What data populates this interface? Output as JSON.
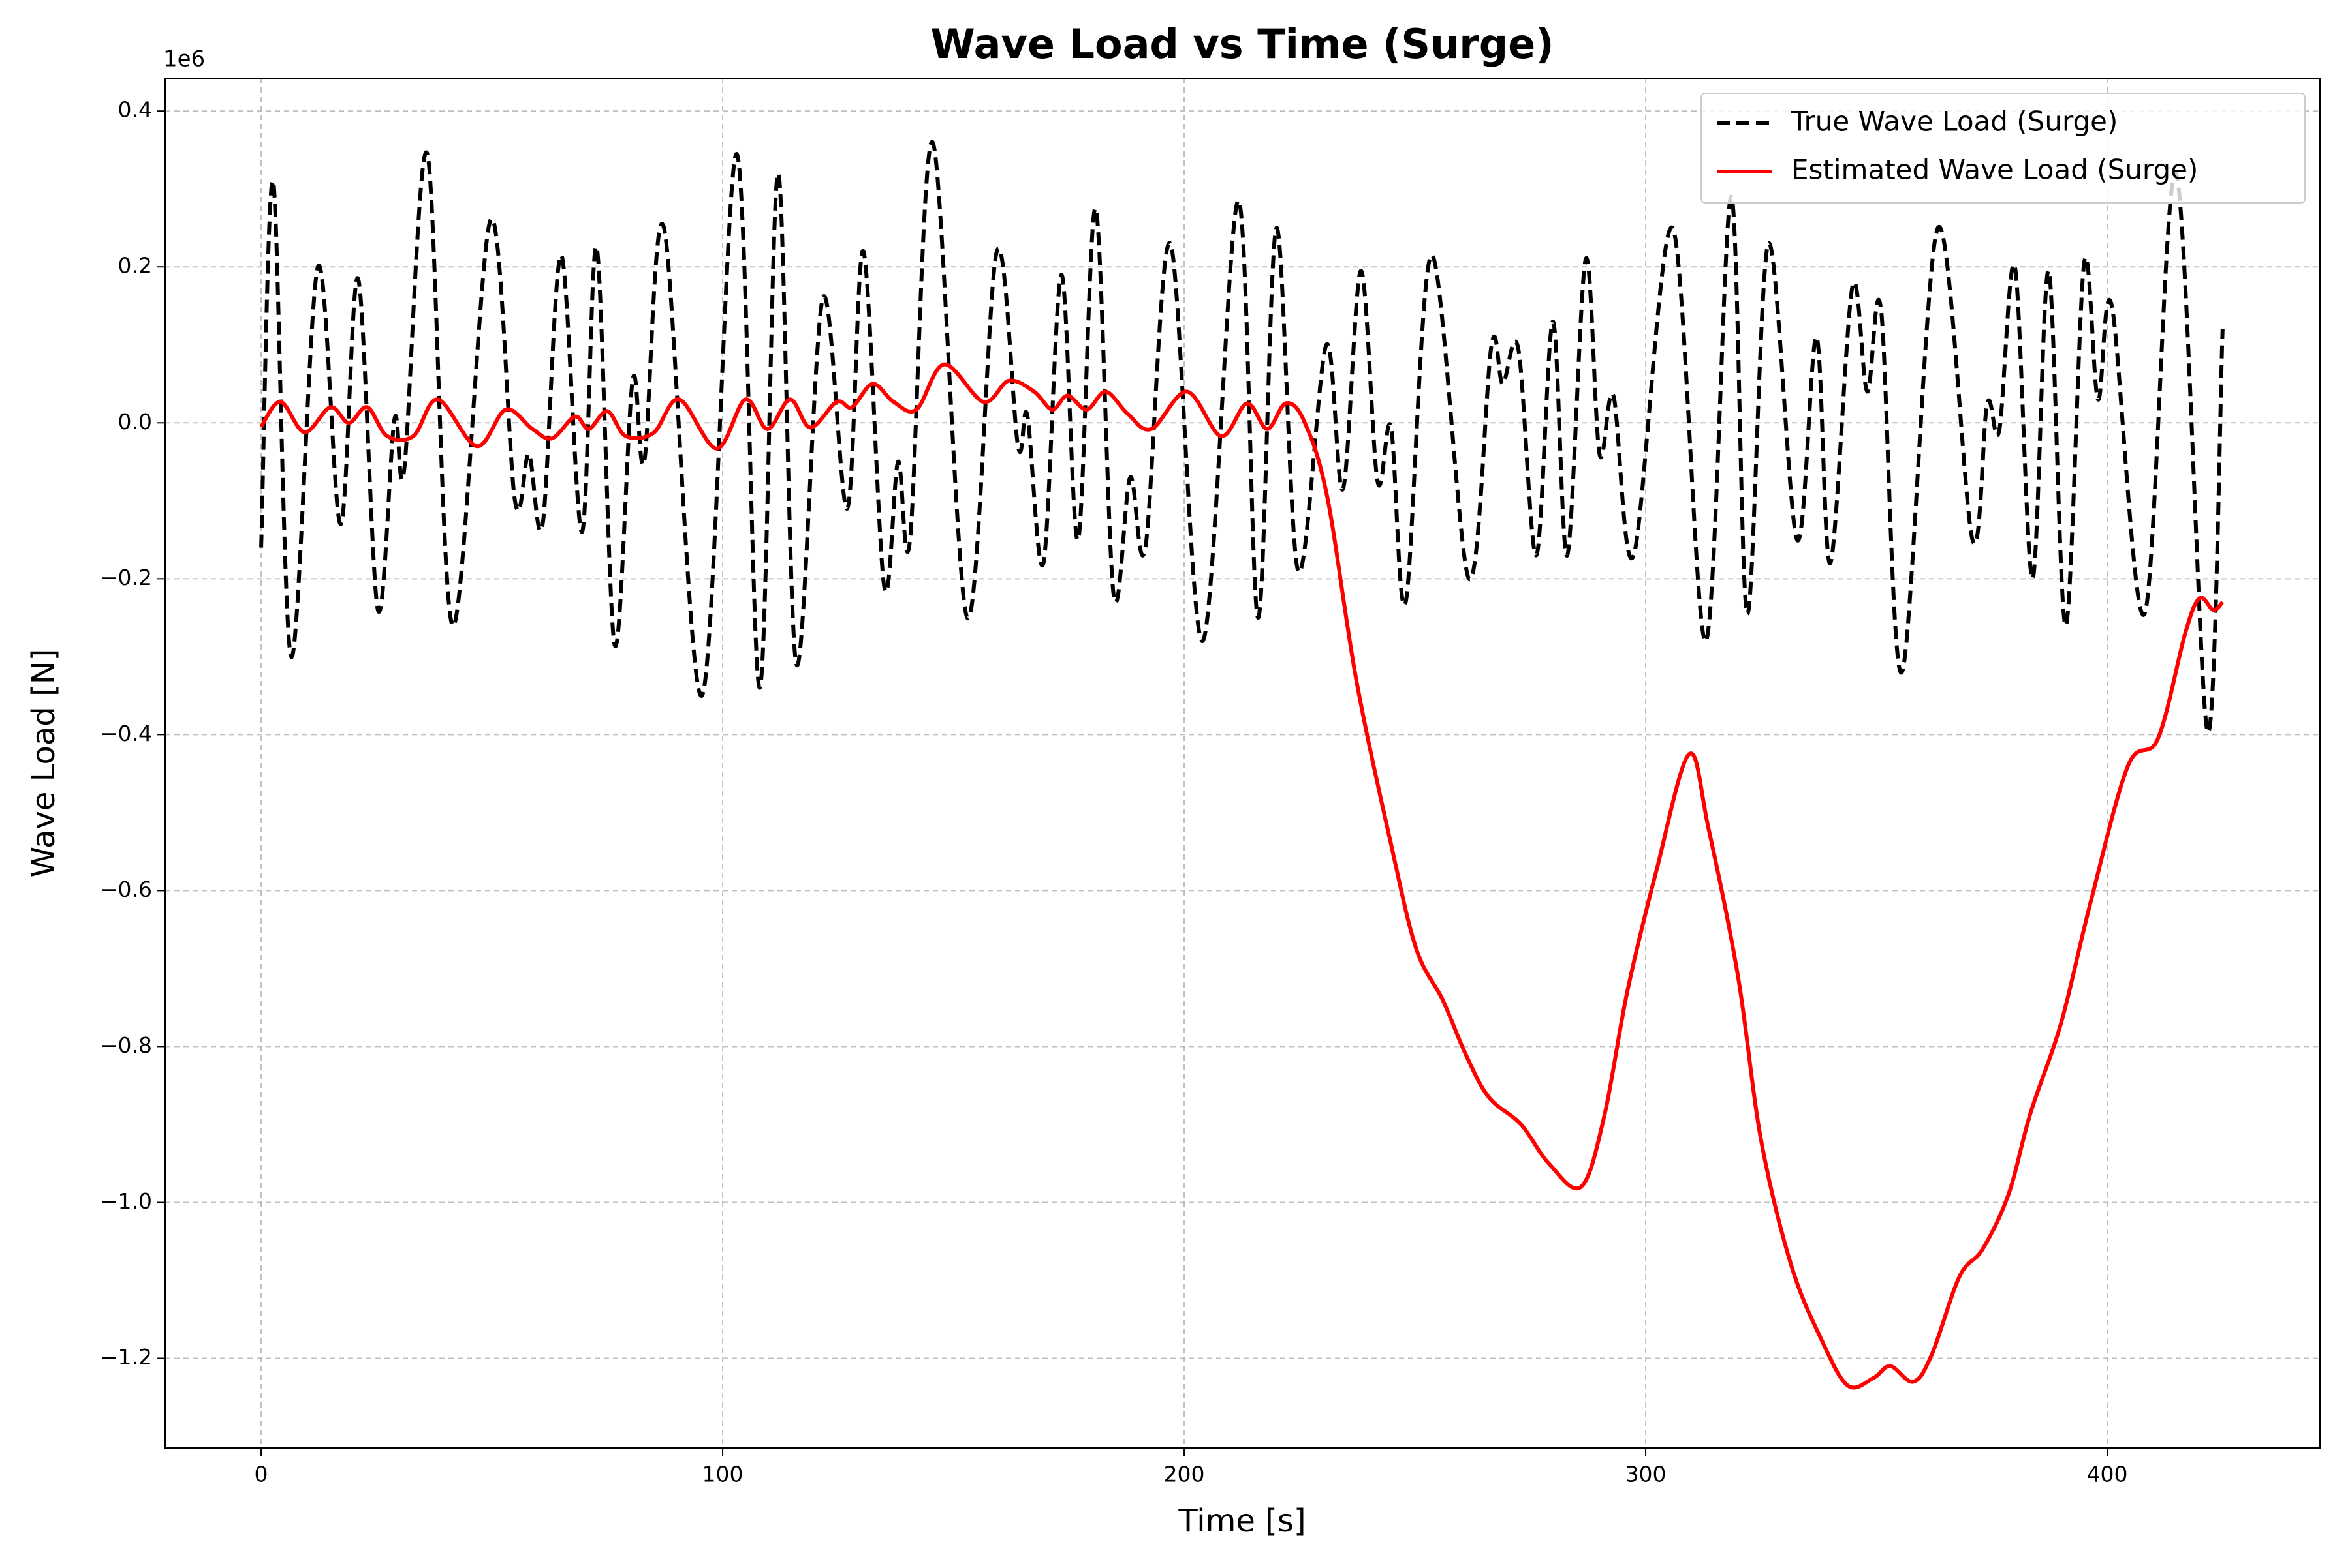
{
  "chart_data": {
    "type": "line",
    "title": "Wave Load vs Time (Surge)",
    "x_label": "Time [s]",
    "y_label": "Wave Load [N]",
    "y_offset_label": "1e6",
    "xlim": [
      -20.8,
      446.1
    ],
    "ylim": [
      -1.315,
      0.442
    ],
    "xticks": [
      0,
      100,
      200,
      300,
      400
    ],
    "yticks": [
      {
        "value": -1.2,
        "label": "−1.2"
      },
      {
        "value": -1.0,
        "label": "−1.0"
      },
      {
        "value": -0.8,
        "label": "−0.8"
      },
      {
        "value": -0.6,
        "label": "−0.6"
      },
      {
        "value": -0.4,
        "label": "−0.4"
      },
      {
        "value": -0.2,
        "label": "−0.2"
      },
      {
        "value": 0,
        "label": "0.0"
      },
      0.2,
      0.4
    ],
    "grid": true,
    "legend_position": "upper right",
    "series": [
      {
        "name": "True Wave Load (Surge)",
        "color": "#000000",
        "dashed": true,
        "x": [
          0,
          2.6,
          6.5,
          12.3,
          17.2,
          21,
          25.3,
          28.9,
          31,
          36,
          41.5,
          49.7,
          55,
          58,
          61,
          65,
          69.5,
          72.7,
          76.6,
          80.5,
          83,
          87.3,
          95.5,
          103,
          108,
          112,
          116,
          121.7,
          127,
          130.5,
          135,
          138,
          140.6,
          145.5,
          153,
          159.4,
          164,
          166,
          169.5,
          173.4,
          177,
          180.8,
          184.7,
          188.3,
          191.6,
          197,
          204,
          211.7,
          216,
          220,
          224.7,
          230.8,
          234.4,
          238.3,
          241.9,
          244.8,
          248,
          253.6,
          261.7,
          266.6,
          269,
          272.4,
          276.3,
          279.9,
          283,
          287,
          290,
          293,
          297.4,
          305.8,
          313,
          318.5,
          322,
          326.6,
          332.8,
          337,
          340,
          344.8,
          348,
          351,
          355.5,
          363.3,
          370.8,
          374,
          376.6,
          380,
          383.8,
          387.3,
          391,
          395,
          398,
          401,
          408.1,
          414.9,
          421.7,
          425
        ],
        "values": [
          -0.16,
          0.31,
          -0.3,
          0.2,
          -0.13,
          0.185,
          -0.24,
          0.005,
          -0.06,
          0.345,
          -0.26,
          0.26,
          -0.1,
          -0.04,
          -0.13,
          0.215,
          -0.14,
          0.225,
          -0.285,
          0.055,
          -0.05,
          0.25,
          -0.35,
          0.345,
          -0.34,
          0.32,
          -0.31,
          0.16,
          -0.11,
          0.22,
          -0.21,
          -0.05,
          -0.15,
          0.36,
          -0.25,
          0.22,
          -0.03,
          0.01,
          -0.18,
          0.19,
          -0.15,
          0.275,
          -0.22,
          -0.07,
          -0.16,
          0.23,
          -0.28,
          0.285,
          -0.25,
          0.25,
          -0.19,
          0.1,
          -0.085,
          0.195,
          -0.075,
          -0.005,
          -0.23,
          0.215,
          -0.2,
          0.1,
          0.05,
          0.095,
          -0.17,
          0.13,
          -0.17,
          0.21,
          -0.04,
          0.035,
          -0.17,
          0.25,
          -0.28,
          0.29,
          -0.245,
          0.23,
          -0.15,
          0.11,
          -0.18,
          0.175,
          0.04,
          0.145,
          -0.32,
          0.25,
          -0.15,
          0.025,
          -0.01,
          0.2,
          -0.2,
          0.195,
          -0.26,
          0.205,
          0.03,
          0.15,
          -0.245,
          0.32,
          -0.395,
          0.12
        ]
      },
      {
        "name": "Estimated Wave Load (Surge)",
        "color": "#ff0000",
        "dashed": false,
        "x": [
          0,
          4.2,
          9.4,
          15,
          19,
          23,
          27.3,
          33,
          38.3,
          46.7,
          53,
          58.8,
          63,
          68,
          71,
          75,
          79,
          85,
          90.6,
          98.7,
          104.9,
          109.7,
          114.6,
          119,
          124.7,
          128,
          132.5,
          137,
          142,
          148,
          156.5,
          162,
          167.5,
          171.4,
          174.7,
          178.9,
          183,
          187.7,
          192.9,
          200.6,
          208,
          213.6,
          218,
          222,
          226,
          231,
          237.3,
          244.8,
          250.3,
          256,
          261,
          266,
          273,
          279,
          286,
          291,
          296,
          302.3,
          309.4,
          313.6,
          320,
          325,
          331.5,
          338,
          343.8,
          349.4,
          353,
          358,
          362,
          368,
          373,
          378.6,
          383.4,
          390,
          396.4,
          404.5,
          411,
          416.9,
          420,
          423,
          425
        ],
        "values": [
          -0.005,
          0.027,
          -0.012,
          0.02,
          0,
          0.02,
          -0.017,
          -0.017,
          0.03,
          -0.03,
          0.017,
          -0.008,
          -0.02,
          0.008,
          -0.008,
          0.015,
          -0.017,
          -0.013,
          0.03,
          -0.033,
          0.03,
          -0.008,
          0.03,
          -0.006,
          0.027,
          0.02,
          0.05,
          0.027,
          0.017,
          0.075,
          0.027,
          0.054,
          0.04,
          0.017,
          0.035,
          0.017,
          0.04,
          0.012,
          -0.008,
          0.04,
          -0.017,
          0.025,
          -0.008,
          0.025,
          0.002,
          -0.095,
          -0.33,
          -0.54,
          -0.675,
          -0.74,
          -0.81,
          -0.865,
          -0.9,
          -0.95,
          -0.98,
          -0.89,
          -0.73,
          -0.575,
          -0.425,
          -0.52,
          -0.71,
          -0.92,
          -1.08,
          -1.175,
          -1.235,
          -1.225,
          -1.21,
          -1.23,
          -1.195,
          -1.095,
          -1.06,
          -0.99,
          -0.885,
          -0.77,
          -0.615,
          -0.44,
          -0.405,
          -0.27,
          -0.225,
          -0.24,
          -0.23
        ]
      }
    ]
  }
}
